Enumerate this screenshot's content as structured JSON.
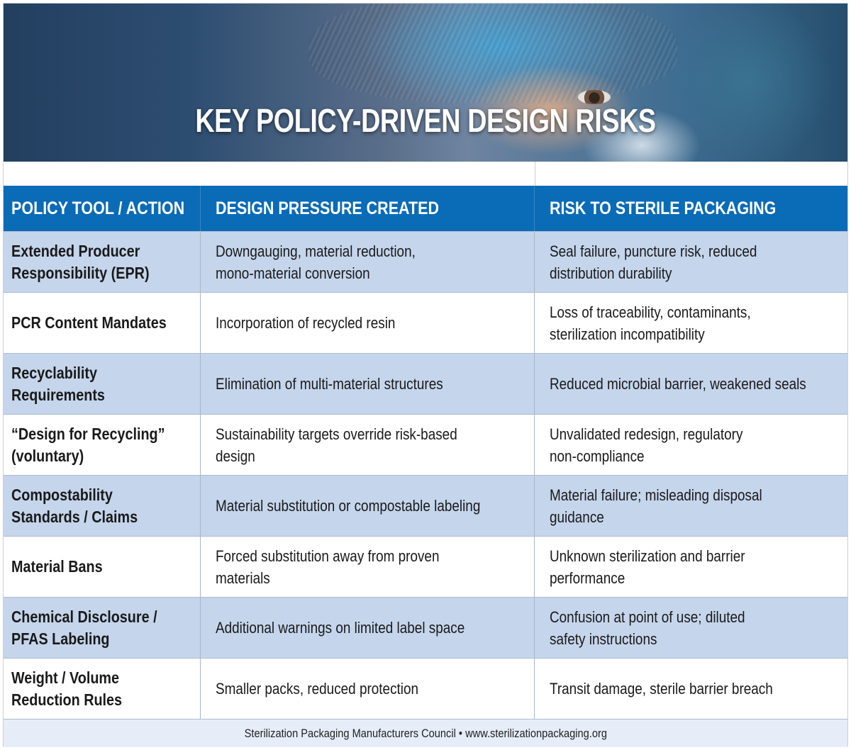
{
  "banner": {
    "title": "KEY POLICY-DRIVEN DESIGN RISKS",
    "image_subject": "healthcare worker in blue surgical cap and mask"
  },
  "table": {
    "headers": [
      "POLICY TOOL / ACTION",
      "DESIGN PRESSURE CREATED",
      "RISK TO STERILE PACKAGING"
    ],
    "rows": [
      {
        "policy": [
          "Extended Producer",
          "Responsibility (EPR)"
        ],
        "pressure": [
          "Downgauging, material reduction,",
          "mono-material conversion"
        ],
        "risk": [
          "Seal failure, puncture risk, reduced",
          "distribution durability"
        ]
      },
      {
        "policy": [
          "PCR Content Mandates"
        ],
        "pressure": [
          "Incorporation of recycled resin"
        ],
        "risk": [
          "Loss of traceability, contaminants,",
          "sterilization incompatibility"
        ]
      },
      {
        "policy": [
          "Recyclability",
          "Requirements"
        ],
        "pressure": [
          "Elimination of multi-material structures"
        ],
        "risk": [
          "Reduced microbial barrier, weakened seals"
        ]
      },
      {
        "policy": [
          "“Design for Recycling”",
          "(voluntary)"
        ],
        "pressure": [
          "Sustainability targets override risk-based",
          "design"
        ],
        "risk": [
          "Unvalidated redesign, regulatory",
          "non-compliance"
        ]
      },
      {
        "policy": [
          "Compostability",
          "Standards / Claims"
        ],
        "pressure": [
          "Material substitution or compostable labeling"
        ],
        "risk": [
          "Material failure; misleading disposal",
          "guidance"
        ]
      },
      {
        "policy": [
          "Material Bans"
        ],
        "pressure": [
          "Forced substitution away from proven",
          "materials"
        ],
        "risk": [
          "Unknown sterilization and barrier",
          "performance"
        ]
      },
      {
        "policy": [
          "Chemical Disclosure /",
          "PFAS Labeling"
        ],
        "pressure": [
          "Additional warnings on limited label space"
        ],
        "risk": [
          "Confusion at point of use; diluted",
          "safety instructions"
        ]
      },
      {
        "policy": [
          "Weight / Volume",
          "Reduction Rules"
        ],
        "pressure": [
          "Smaller packs, reduced protection"
        ],
        "risk": [
          "Transit damage, sterile barrier breach"
        ]
      }
    ]
  },
  "footer": {
    "text": "Sterilization Packaging Manufacturers Council • www.sterilizationpackaging.org"
  },
  "colors": {
    "header_blue": "#0a6bb7",
    "row_shade": "#c5d5ec",
    "footer_bg": "#e6edf8"
  }
}
